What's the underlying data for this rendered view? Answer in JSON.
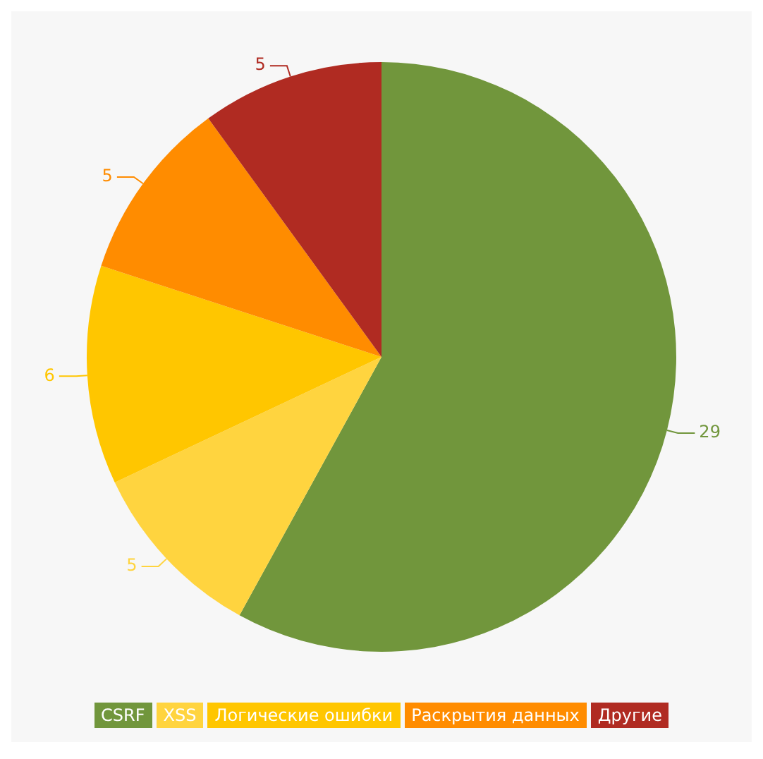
{
  "chart_data": {
    "type": "pie",
    "categories": [
      "CSRF",
      "XSS",
      "Логические ошибки",
      "Раскрытия данных",
      "Другие"
    ],
    "values": [
      29,
      5,
      6,
      5,
      5
    ],
    "colors": [
      "#71963c",
      "#ffd43f",
      "#ffc600",
      "#ff8c00",
      "#b02b22"
    ],
    "data_labels": true,
    "legend": "bottom"
  }
}
